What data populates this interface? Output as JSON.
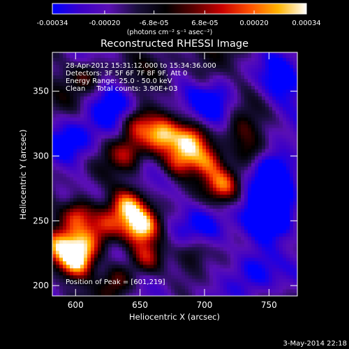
{
  "colorbar": {
    "tick_labels": [
      "-0.00034",
      "-0.00020",
      "-6.8e-05",
      "6.8e-05",
      "0.00020",
      "0.00034"
    ],
    "tick_values": [
      -0.00034,
      -0.0002,
      -6.8e-05,
      6.8e-05,
      0.0002,
      0.00034
    ],
    "range": [
      -0.00034,
      0.00034
    ],
    "unit_label": "(photons cm⁻² s⁻¹ asec⁻²)",
    "colors": [
      "#0000ff",
      "#3c00c8",
      "#5a0fb4",
      "#1a0f3c",
      "#000000",
      "#5a0000",
      "#c80000",
      "#ff5000",
      "#ffb400",
      "#ffffff"
    ]
  },
  "chart_data": {
    "type": "heatmap",
    "title": "Reconstructed RHESSI Image",
    "xlabel": "Heliocentric X (arcsec)",
    "ylabel": "Heliocentric Y (arcsec)",
    "xlim": [
      582,
      772
    ],
    "ylim": [
      192,
      380
    ],
    "x_ticks": [
      600,
      650,
      700,
      750
    ],
    "y_ticks": [
      200,
      250,
      300,
      350
    ],
    "info_lines": [
      "28-Apr-2012 15:31:12.000 to 15:34:36.000",
      "Detectors: 3F 5F 6F 7F 8F 9F, Att 0",
      "Energy Range: 25.0 - 50.0 keV",
      "Clean     Total counts: 3.90E+03"
    ],
    "peak_label": "Position of Peak = [601,219]",
    "peak_position": [
      601,
      219
    ],
    "hotspots": [
      {
        "x": 648,
        "y": 325,
        "v": 0.75
      },
      {
        "x": 666,
        "y": 316,
        "v": 0.85
      },
      {
        "x": 690,
        "y": 312,
        "v": 0.8
      },
      {
        "x": 703,
        "y": 297,
        "v": 0.75
      },
      {
        "x": 715,
        "y": 279,
        "v": 0.7
      },
      {
        "x": 680,
        "y": 296,
        "v": 0.7
      },
      {
        "x": 640,
        "y": 303,
        "v": 0.5
      },
      {
        "x": 735,
        "y": 303,
        "v": 0.55
      },
      {
        "x": 725,
        "y": 318,
        "v": 0.4
      },
      {
        "x": 602,
        "y": 255,
        "v": 0.85
      },
      {
        "x": 640,
        "y": 262,
        "v": 0.85
      },
      {
        "x": 622,
        "y": 247,
        "v": 0.55
      },
      {
        "x": 651,
        "y": 246,
        "v": 0.95
      },
      {
        "x": 655,
        "y": 222,
        "v": 0.65
      },
      {
        "x": 601,
        "y": 219,
        "v": 1.0
      },
      {
        "x": 588,
        "y": 232,
        "v": 0.7
      },
      {
        "x": 608,
        "y": 233,
        "v": 0.6
      },
      {
        "x": 632,
        "y": 205,
        "v": 0.6
      },
      {
        "x": 692,
        "y": 228,
        "v": 0.45
      },
      {
        "x": 610,
        "y": 363,
        "v": 0.45
      },
      {
        "x": 700,
        "y": 360,
        "v": 0.35
      }
    ],
    "coldspots": [
      {
        "x": 755,
        "y": 288,
        "v": -0.9
      },
      {
        "x": 750,
        "y": 254,
        "v": -0.7
      },
      {
        "x": 705,
        "y": 340,
        "v": -0.55
      },
      {
        "x": 760,
        "y": 355,
        "v": -0.5
      },
      {
        "x": 738,
        "y": 215,
        "v": -0.6
      },
      {
        "x": 700,
        "y": 250,
        "v": -0.45
      },
      {
        "x": 600,
        "y": 310,
        "v": -0.5
      },
      {
        "x": 625,
        "y": 340,
        "v": -0.45
      },
      {
        "x": 665,
        "y": 200,
        "v": -0.4
      }
    ]
  },
  "footer": {
    "timestamp": "3-May-2014 22:18"
  }
}
